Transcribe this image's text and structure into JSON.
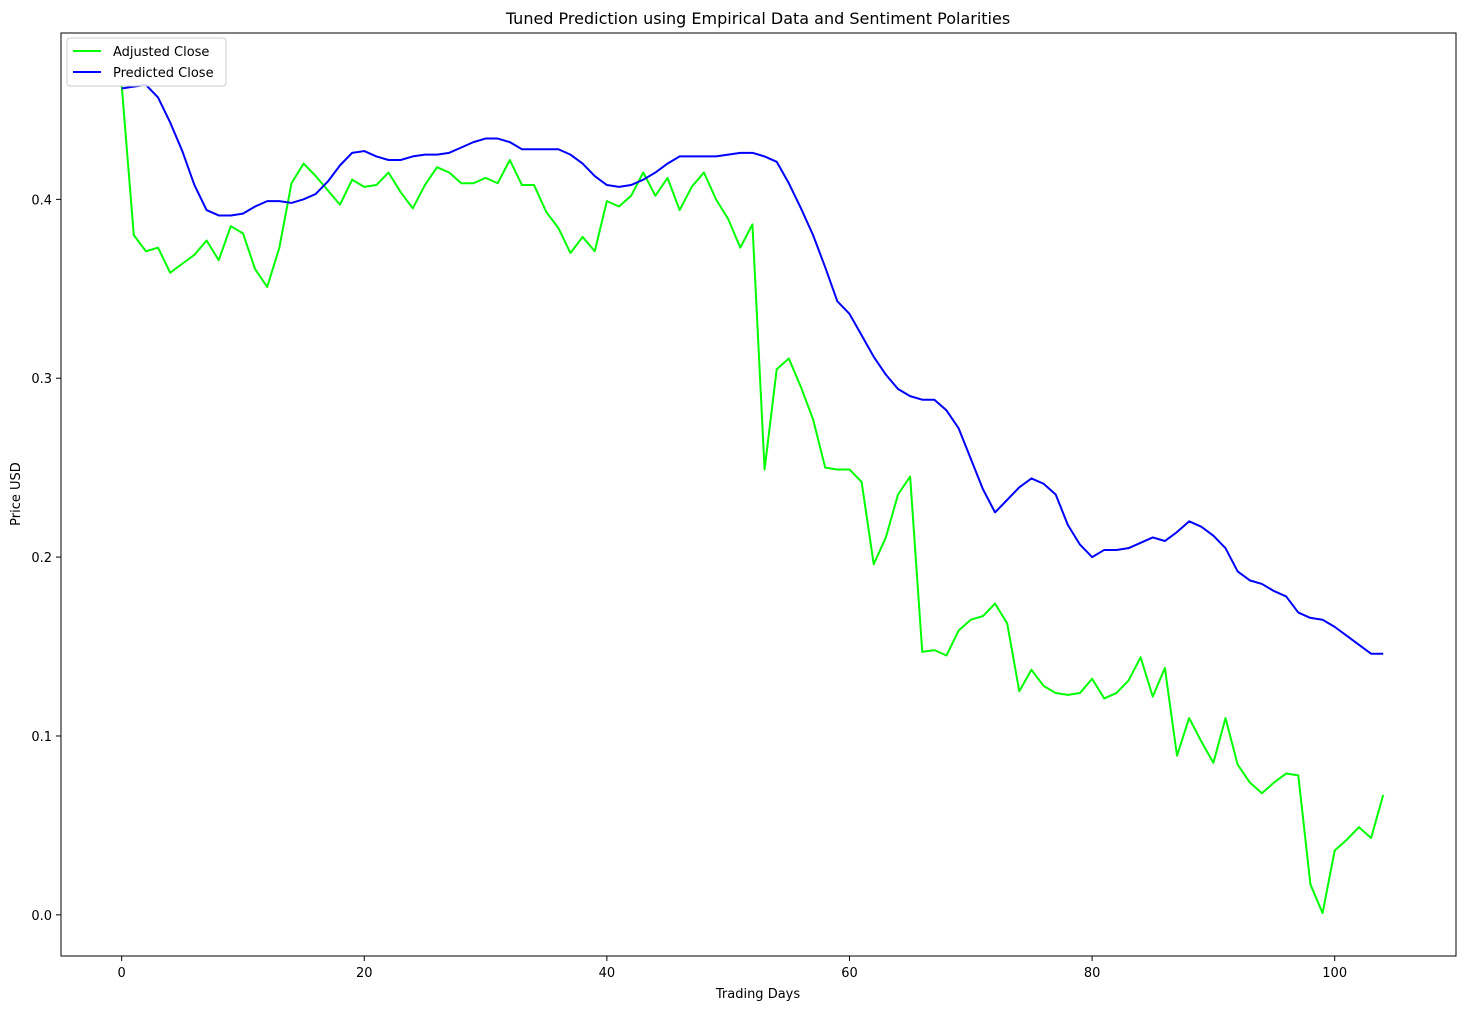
{
  "chart_data": {
    "type": "line",
    "title": "Tuned Prediction using Empirical Data and Sentiment Polarities",
    "xlabel": "Trading Days",
    "ylabel": "Price USD",
    "xlim": [
      -5,
      110
    ],
    "ylim": [
      -0.023,
      0.493
    ],
    "xticks": [
      0,
      20,
      40,
      60,
      80,
      100
    ],
    "yticks": [
      0.0,
      0.1,
      0.2,
      0.3,
      0.4
    ],
    "ytick_labels": [
      "0.0",
      "0.1",
      "0.2",
      "0.3",
      "0.4"
    ],
    "grid": false,
    "legend_position": "top-left",
    "series": [
      {
        "name": "Adjusted Close",
        "color": "#00ff00",
        "values": [
          0.464,
          0.38,
          0.371,
          0.373,
          0.359,
          0.364,
          0.369,
          0.377,
          0.366,
          0.385,
          0.381,
          0.361,
          0.351,
          0.373,
          0.409,
          0.42,
          0.413,
          0.405,
          0.397,
          0.411,
          0.407,
          0.408,
          0.415,
          0.404,
          0.395,
          0.408,
          0.418,
          0.415,
          0.409,
          0.409,
          0.412,
          0.409,
          0.422,
          0.408,
          0.408,
          0.393,
          0.384,
          0.37,
          0.379,
          0.371,
          0.399,
          0.396,
          0.402,
          0.415,
          0.402,
          0.412,
          0.394,
          0.407,
          0.415,
          0.4,
          0.389,
          0.373,
          0.386,
          0.249,
          0.305,
          0.311,
          0.295,
          0.277,
          0.25,
          0.249,
          0.249,
          0.242,
          0.196,
          0.211,
          0.235,
          0.245,
          0.147,
          0.148,
          0.145,
          0.159,
          0.165,
          0.167,
          0.174,
          0.163,
          0.125,
          0.137,
          0.128,
          0.124,
          0.123,
          0.124,
          0.132,
          0.121,
          0.124,
          0.131,
          0.144,
          0.122,
          0.138,
          0.089,
          0.11,
          0.097,
          0.085,
          0.11,
          0.084,
          0.074,
          0.068,
          0.074,
          0.079,
          0.078,
          0.017,
          0.001,
          0.036,
          0.042,
          0.049,
          0.043,
          0.067
        ]
      },
      {
        "name": "Predicted Close",
        "color": "#0000ff",
        "values": [
          0.462,
          0.463,
          0.464,
          0.457,
          0.443,
          0.427,
          0.408,
          0.394,
          0.391,
          0.391,
          0.392,
          0.396,
          0.399,
          0.399,
          0.398,
          0.4,
          0.403,
          0.41,
          0.419,
          0.426,
          0.427,
          0.424,
          0.422,
          0.422,
          0.424,
          0.425,
          0.425,
          0.426,
          0.429,
          0.432,
          0.434,
          0.434,
          0.432,
          0.428,
          0.428,
          0.428,
          0.428,
          0.425,
          0.42,
          0.413,
          0.408,
          0.407,
          0.408,
          0.411,
          0.415,
          0.42,
          0.424,
          0.424,
          0.424,
          0.424,
          0.425,
          0.426,
          0.426,
          0.424,
          0.421,
          0.409,
          0.395,
          0.38,
          0.362,
          0.343,
          0.336,
          0.324,
          0.312,
          0.302,
          0.294,
          0.29,
          0.288,
          0.288,
          0.282,
          0.272,
          0.255,
          0.238,
          0.225,
          0.232,
          0.239,
          0.244,
          0.241,
          0.235,
          0.218,
          0.207,
          0.2,
          0.204,
          0.204,
          0.205,
          0.208,
          0.211,
          0.209,
          0.214,
          0.22,
          0.217,
          0.212,
          0.205,
          0.192,
          0.187,
          0.185,
          0.181,
          0.178,
          0.169,
          0.166,
          0.165,
          0.161,
          0.156,
          0.151,
          0.146,
          0.146
        ]
      }
    ]
  }
}
